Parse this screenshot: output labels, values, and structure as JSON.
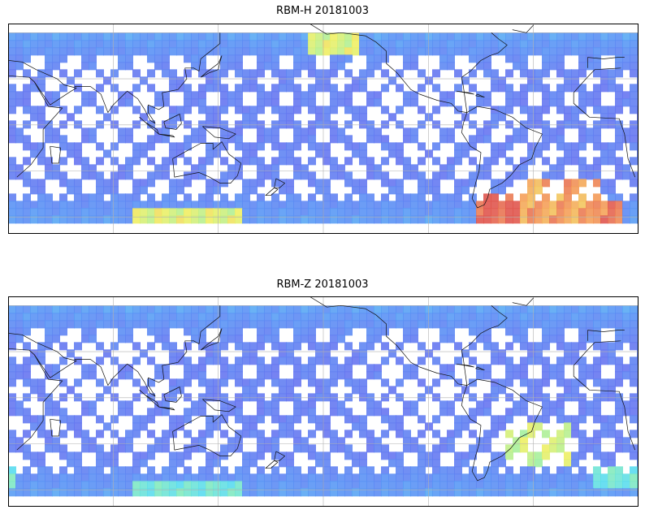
{
  "panels": [
    {
      "id": "top",
      "title": "RBM-H 20181003",
      "lon_range": [
        -180,
        180
      ],
      "lat_range": [
        -90,
        90
      ],
      "data_lat_band": [
        -60,
        60
      ],
      "colormap": "jet",
      "high_regions": [
        {
          "desc": "southern ocean south of Africa",
          "lon": [
            -10,
            10
          ],
          "lat": [
            -60,
            -45
          ],
          "level": 0.95
        },
        {
          "desc": "south atlantic off argentina",
          "lon": [
            -75,
            -50
          ],
          "lat": [
            -60,
            -40
          ],
          "level": 1.0
        },
        {
          "desc": "south atlantic central",
          "lon": [
            -50,
            -5
          ],
          "lat": [
            -60,
            -35
          ],
          "level": 0.9
        },
        {
          "desc": "southern ocean south of australia",
          "lon": [
            90,
            150
          ],
          "lat": [
            -60,
            -50
          ],
          "level": 0.75
        },
        {
          "desc": "north pacific bering",
          "lon": [
            -170,
            -140
          ],
          "lat": [
            50,
            60
          ],
          "level": 0.75
        }
      ]
    },
    {
      "id": "bottom",
      "title": "RBM-Z 20181003",
      "lon_range": [
        -180,
        180
      ],
      "lat_range": [
        -90,
        90
      ],
      "data_lat_band": [
        -60,
        60
      ],
      "colormap": "jet",
      "high_regions": [
        {
          "desc": "south atlantic off brazil",
          "lon": [
            -60,
            -20
          ],
          "lat": [
            -40,
            -15
          ],
          "level": 0.72
        },
        {
          "desc": "southern ocean south of africa",
          "lon": [
            -10,
            20
          ],
          "lat": [
            -55,
            -40
          ],
          "level": 0.55
        },
        {
          "desc": "southern ocean south of australia",
          "lon": [
            90,
            150
          ],
          "lat": [
            -60,
            -50
          ],
          "level": 0.55
        }
      ]
    }
  ],
  "colors": {
    "frame": "#000000",
    "grid": "#b0b0b0",
    "coastline": "#111111",
    "low": "#6a6ef0",
    "high": "#e0564f"
  }
}
